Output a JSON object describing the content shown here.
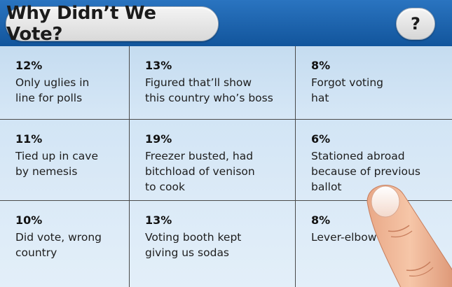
{
  "header": {
    "title": "Why Didn’t We Vote?",
    "help_label": "?"
  },
  "cells": [
    {
      "percent": "12%",
      "line1": "Only uglies in",
      "line2": "line for polls",
      "line3": ""
    },
    {
      "percent": "13%",
      "line1": "Figured that’ll show",
      "line2": "this country who’s boss",
      "line3": ""
    },
    {
      "percent": "8%",
      "line1": "Forgot voting",
      "line2": "hat",
      "line3": ""
    },
    {
      "percent": "11%",
      "line1": "Tied up in cave",
      "line2": "by nemesis",
      "line3": ""
    },
    {
      "percent": "19%",
      "line1": "Freezer busted, had",
      "line2": "bitchload of venison",
      "line3": "to cook"
    },
    {
      "percent": "6%",
      "line1": "Stationed abroad",
      "line2": "because of previous",
      "line3": "ballot"
    },
    {
      "percent": "10%",
      "line1": "Did vote, wrong",
      "line2": "country",
      "line3": ""
    },
    {
      "percent": "13%",
      "line1": "Voting booth kept",
      "line2": "giving us sodas",
      "line3": ""
    },
    {
      "percent": "8%",
      "line1": "Lever-elbow",
      "line2": "",
      "line3": ""
    }
  ],
  "colors": {
    "header_blue": "#1d5fa6",
    "cell_light_blue": "#d6e7f6",
    "grid_lines": "#4a4a4a"
  },
  "icons": {
    "finger": "pointing-finger-icon"
  }
}
